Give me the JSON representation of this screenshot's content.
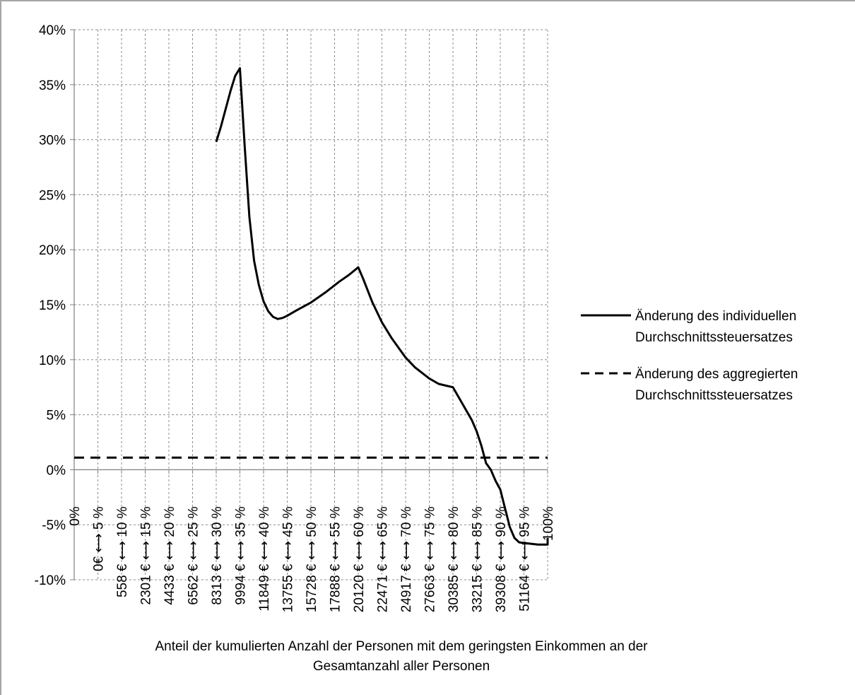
{
  "chart_data": {
    "type": "line",
    "title": "",
    "xlabel_lines": [
      "Anteil der  kumulierten Anzahl der Personen mit dem geringsten Einkommen an der",
      "Gesamtanzahl aller Personen"
    ],
    "ylabel": "",
    "ylim": [
      -0.1,
      0.4
    ],
    "ytick_values": [
      -0.1,
      -0.05,
      0.0,
      0.05,
      0.1,
      0.15,
      0.2,
      0.25,
      0.3,
      0.35,
      0.4
    ],
    "ytick_labels": [
      "-10%",
      "-5%",
      "0%",
      "5%",
      "10%",
      "15%",
      "20%",
      "25%",
      "30%",
      "35%",
      "40%"
    ],
    "categories": [
      "0%",
      "0€ ⟷ 5 %",
      "558 € ⟷ 10 %",
      "2301 € ⟷ 15 %",
      "4433 € ⟷ 20 %",
      "6562 € ⟷ 25 %",
      "8313 € ⟷ 30 %",
      "9994 € ⟷ 35 %",
      "11849 € ⟷ 40 %",
      "13755 € ⟷ 45 %",
      "15728 € ⟷ 50 %",
      "17888 € ⟷ 55 %",
      "20120 € ⟷ 60 %",
      "22471 € ⟷ 65 %",
      "24917 € ⟷ 70 %",
      "27663 € ⟷ 75 %",
      "30385 € ⟷ 80 %",
      "33215 € ⟷ 85 %",
      "39308 € ⟷ 90 %",
      "51164 € ⟷ 95 %",
      "100%"
    ],
    "grid": true,
    "legend_position": "right",
    "series": [
      {
        "name": "Änderung des individuellen Durchschnittssteuersatzes",
        "legend_lines": [
          "Änderung des individuellen",
          "Durchschnittssteuersatzes"
        ],
        "style": "solid",
        "color": "#000000",
        "points": [
          [
            30,
            0.298
          ],
          [
            31,
            0.312
          ],
          [
            32,
            0.328
          ],
          [
            33,
            0.344
          ],
          [
            34,
            0.358
          ],
          [
            35,
            0.365
          ],
          [
            36,
            0.295
          ],
          [
            37,
            0.23
          ],
          [
            38,
            0.19
          ],
          [
            39,
            0.168
          ],
          [
            40,
            0.153
          ],
          [
            41,
            0.144
          ],
          [
            42,
            0.139
          ],
          [
            43,
            0.137
          ],
          [
            44,
            0.138
          ],
          [
            45,
            0.14
          ],
          [
            47,
            0.145
          ],
          [
            50,
            0.152
          ],
          [
            53,
            0.161
          ],
          [
            56,
            0.171
          ],
          [
            58,
            0.177
          ],
          [
            60,
            0.184
          ],
          [
            61,
            0.174
          ],
          [
            63,
            0.152
          ],
          [
            65,
            0.134
          ],
          [
            67,
            0.12
          ],
          [
            70,
            0.102
          ],
          [
            72,
            0.093
          ],
          [
            75,
            0.083
          ],
          [
            77,
            0.078
          ],
          [
            80,
            0.075
          ],
          [
            82,
            0.06
          ],
          [
            84,
            0.045
          ],
          [
            85,
            0.035
          ],
          [
            86,
            0.022
          ],
          [
            87,
            0.006
          ],
          [
            88,
            0.0
          ],
          [
            89,
            -0.01
          ],
          [
            90,
            -0.018
          ],
          [
            91,
            -0.035
          ],
          [
            92,
            -0.052
          ],
          [
            93,
            -0.062
          ],
          [
            94,
            -0.066
          ],
          [
            96,
            -0.067
          ],
          [
            98,
            -0.068
          ],
          [
            100,
            -0.068
          ],
          [
            100,
            -0.062
          ]
        ]
      },
      {
        "name": "Änderung des aggregierten Durchschnittssteuersatzes",
        "legend_lines": [
          "Änderung des aggregierten",
          "Durchschnittssteuersatzes"
        ],
        "style": "dashed",
        "color": "#000000",
        "points": [
          [
            0,
            0.011
          ],
          [
            100,
            0.011
          ]
        ]
      }
    ]
  }
}
